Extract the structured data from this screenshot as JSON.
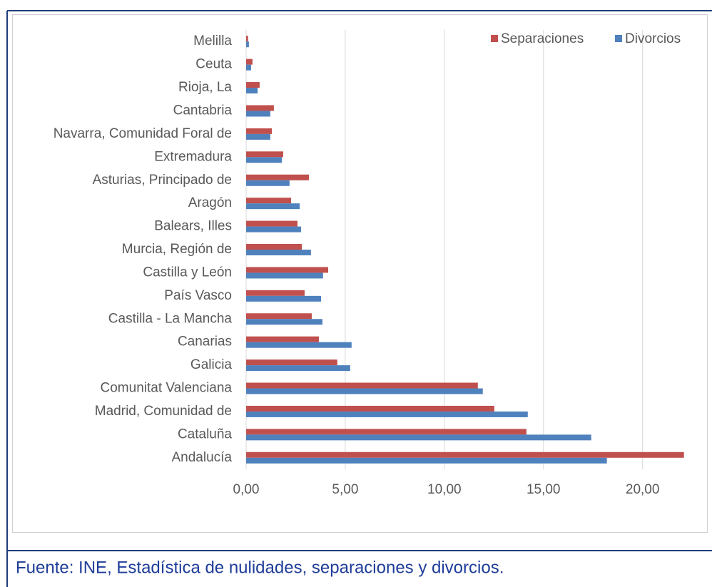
{
  "chart_data": {
    "type": "barh",
    "categories": [
      "Melilla",
      "Ceuta",
      "Rioja, La",
      "Cantabria",
      "Navarra, Comunidad Foral de",
      "Extremadura",
      "Asturias, Principado de",
      "Aragón",
      "Balears, Illes",
      "Murcia, Región de",
      "Castilla y León",
      "País Vasco",
      "Castilla - La Mancha",
      "Canarias",
      "Galicia",
      "Comunitat Valenciana",
      "Madrid, Comunidad de",
      "Cataluña",
      "Andalucía"
    ],
    "series": [
      {
        "name": "Separaciones",
        "color": "#c0504d",
        "values": [
          0.1,
          0.32,
          0.68,
          1.4,
          1.3,
          1.87,
          3.17,
          2.27,
          2.59,
          2.81,
          4.14,
          2.95,
          3.31,
          3.67,
          4.6,
          11.69,
          12.52,
          14.14,
          22.09
        ]
      },
      {
        "name": "Divorcios",
        "color": "#4f81bd",
        "values": [
          0.14,
          0.25,
          0.58,
          1.22,
          1.22,
          1.8,
          2.19,
          2.7,
          2.77,
          3.27,
          3.88,
          3.78,
          3.85,
          5.32,
          5.25,
          11.94,
          14.21,
          17.41,
          18.2
        ]
      }
    ],
    "xlim": [
      0,
      23
    ],
    "xticks": [
      {
        "value": 0,
        "label": "0,00"
      },
      {
        "value": 5,
        "label": "5,00"
      },
      {
        "value": 10,
        "label": "10,00"
      },
      {
        "value": 15,
        "label": "15,00"
      },
      {
        "value": 20,
        "label": "20,00"
      }
    ],
    "grid": true,
    "legend": "top-right"
  },
  "footnote": "Fuente: INE, Estadística de nulidades, separaciones y divorcios."
}
